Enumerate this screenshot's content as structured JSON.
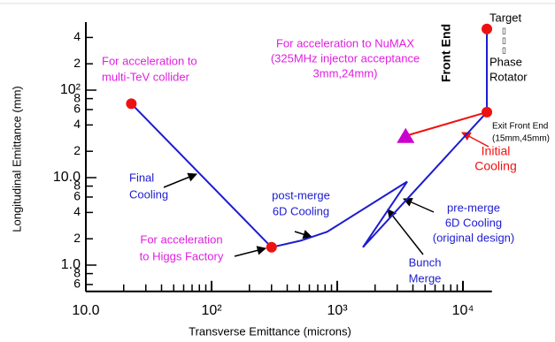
{
  "chart_data": {
    "type": "line",
    "log_x": true,
    "log_y": true,
    "xlabel": "Transverse Emittance (microns)",
    "ylabel": "Longitudinal Emittance (mm)",
    "xlim": [
      10,
      17000
    ],
    "ylim": [
      0.5,
      600
    ],
    "xticks": [
      {
        "value": 10,
        "label": "10.0"
      },
      {
        "value": 100,
        "label": "10²"
      },
      {
        "value": 1000,
        "label": "10³"
      },
      {
        "value": 10000,
        "label": "10⁴"
      }
    ],
    "xminor": [
      20,
      30,
      40,
      50,
      60,
      70,
      80,
      90,
      200,
      300,
      400,
      500,
      600,
      700,
      800,
      900,
      2000,
      3000,
      4000,
      5000,
      6000,
      7000,
      8000,
      9000
    ],
    "yticks": [
      {
        "value": 0.6,
        "label": "6"
      },
      {
        "value": 0.8,
        "label": "8"
      },
      {
        "value": 1,
        "label": "1.0"
      },
      2,
      4,
      6,
      8,
      {
        "value": 10,
        "label": "10.0"
      },
      {
        "value": 20,
        "label": "2"
      },
      {
        "value": 40,
        "label": "4"
      },
      {
        "value": 60,
        "label": "6"
      },
      {
        "value": 80,
        "label": "8"
      },
      {
        "value": 100,
        "label": "10²"
      },
      {
        "value": 200,
        "label": "2"
      },
      {
        "value": 400,
        "label": "4"
      }
    ],
    "series": [
      {
        "color": "#1c1cd0",
        "x": [
          23,
          300,
          510,
          830,
          3600,
          1600,
          15500,
          15500
        ],
        "values": [
          70,
          1.6,
          1.9,
          2.4,
          9,
          1.6,
          56,
          500
        ]
      },
      {
        "color": "#ee1111",
        "x": [
          15500,
          3500
        ],
        "values": [
          56,
          30
        ]
      }
    ],
    "points": {
      "color": "#ee1111",
      "x": [
        23,
        300,
        15500,
        15500
      ],
      "values": [
        70,
        1.6,
        56,
        500
      ]
    },
    "triangle": {
      "color": "#cc00cc",
      "x": [
        3500
      ],
      "values": [
        30
      ]
    },
    "annotations": [
      {
        "color": "#e020e0",
        "lines": [
          "For acceleration to",
          "multi-TeV collider"
        ]
      },
      {
        "color": "#e020e0",
        "lines": [
          "For acceleration to NuMAX",
          "(325MHz injector acceptance",
          "3mm,24mm)"
        ]
      },
      {
        "color": "#1c1cd0",
        "lines": [
          "Final",
          "Cooling"
        ]
      },
      {
        "color": "#1c1cd0",
        "lines": [
          "post-merge",
          "6D Cooling"
        ]
      },
      {
        "color": "#e020e0",
        "lines": [
          "For acceleration",
          "to Higgs Factory"
        ]
      },
      {
        "color": "#1c1cd0",
        "lines": [
          "pre-merge",
          "6D Cooling",
          "(original design)"
        ]
      },
      {
        "color": "#1c1cd0",
        "lines": [
          "Bunch",
          "Merge"
        ]
      },
      {
        "color": "#ee1111",
        "lines": [
          "Initial",
          "Cooling"
        ]
      },
      {
        "color": "#000000",
        "lines": [
          "Exit Front End",
          "(15mm,45mm)"
        ]
      },
      {
        "color": "#000000",
        "lines": [
          "Target",
          "▯",
          "▯",
          "▯",
          "Phase",
          "Rotator"
        ]
      },
      {
        "color": "#000000",
        "lines": [
          "Front End"
        ]
      }
    ]
  }
}
